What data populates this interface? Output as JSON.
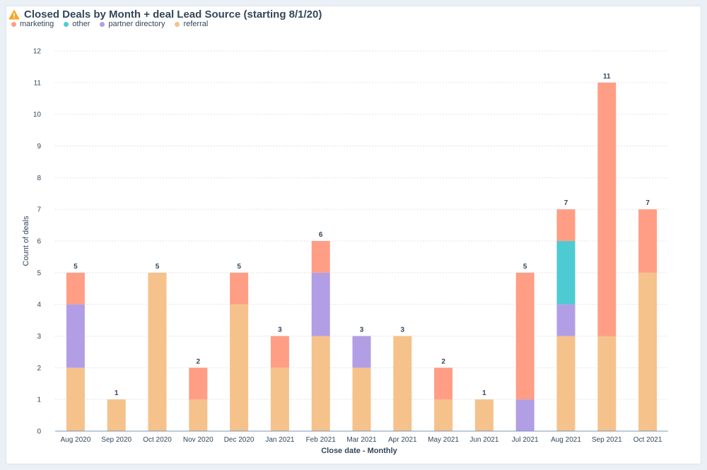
{
  "header": {
    "title": "Closed Deals by Month + deal Lead Source (starting 8/1/20)",
    "warning_icon": "warning-icon"
  },
  "chart_data": {
    "type": "bar",
    "stacked": true,
    "xlabel": "Close date - Monthly",
    "ylabel": "Count of deals",
    "ylim": [
      0,
      12
    ],
    "yticks": [
      0,
      1,
      2,
      3,
      4,
      5,
      6,
      7,
      8,
      9,
      10,
      11,
      12
    ],
    "grid": true,
    "legend_position": "top-left",
    "categories": [
      "Aug 2020",
      "Sep 2020",
      "Oct 2020",
      "Nov 2020",
      "Dec 2020",
      "Jan 2021",
      "Feb 2021",
      "Mar 2021",
      "Apr 2021",
      "May 2021",
      "Jun 2021",
      "Jul 2021",
      "Aug 2021",
      "Sep 2021",
      "Oct 2021"
    ],
    "series": [
      {
        "name": "referral",
        "color": "#f5c28b",
        "values": [
          2,
          1,
          5,
          1,
          4,
          2,
          3,
          2,
          3,
          1,
          1,
          0,
          3,
          3,
          5
        ]
      },
      {
        "name": "partner directory",
        "color": "#b29ee4",
        "values": [
          2,
          0,
          0,
          0,
          0,
          0,
          2,
          1,
          0,
          0,
          0,
          1,
          1,
          0,
          0
        ]
      },
      {
        "name": "other",
        "color": "#4ecbd2",
        "values": [
          0,
          0,
          0,
          0,
          0,
          0,
          0,
          0,
          0,
          0,
          0,
          0,
          2,
          0,
          0
        ]
      },
      {
        "name": "marketing",
        "color": "#ff9e85",
        "values": [
          1,
          0,
          0,
          1,
          1,
          1,
          1,
          0,
          0,
          1,
          0,
          4,
          1,
          8,
          2
        ]
      }
    ],
    "legend_order": [
      "marketing",
      "other",
      "partner directory",
      "referral"
    ],
    "totals": [
      5,
      1,
      5,
      2,
      5,
      3,
      6,
      3,
      3,
      2,
      1,
      5,
      7,
      11,
      7
    ]
  }
}
